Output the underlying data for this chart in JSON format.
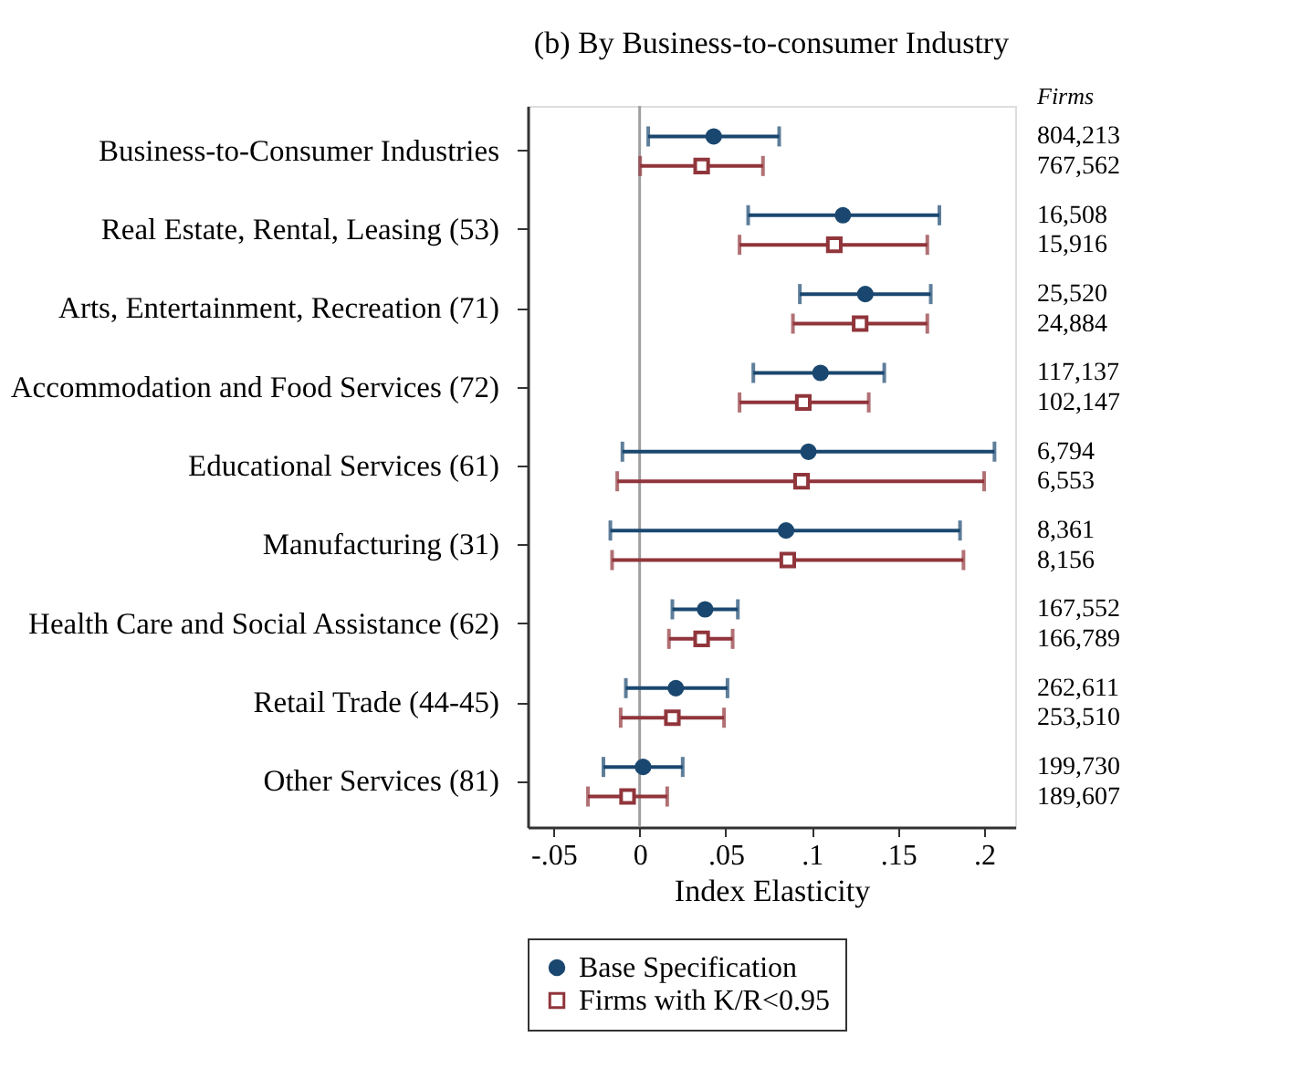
{
  "chart_data": {
    "type": "scatter",
    "orientation": "horizontal",
    "title": "(b) By Business-to-consumer Industry",
    "xlabel": "Index Elasticity",
    "categories": [
      "Business-to-Consumer Industries",
      "Real Estate, Rental, Leasing (53)",
      "Arts, Entertainment, Recreation (71)",
      "Accommodation and Food Services (72)",
      "Educational Services (61)",
      "Manufacturing (31)",
      "Health Care and Social Assistance (62)",
      "Retail Trade (44-45)",
      "Other Services (81)"
    ],
    "series": [
      {
        "name": "Base Specification",
        "color": "#1a476f",
        "marker": "circle",
        "values": [
          0.043,
          0.118,
          0.131,
          0.105,
          0.098,
          0.085,
          0.038,
          0.021,
          0.002
        ],
        "errors": [
          [
            0.005,
            0.081
          ],
          [
            0.063,
            0.174
          ],
          [
            0.093,
            0.169
          ],
          [
            0.066,
            0.142
          ],
          [
            -0.01,
            0.206
          ],
          [
            -0.017,
            0.186
          ],
          [
            0.019,
            0.057
          ],
          [
            -0.008,
            0.051
          ],
          [
            -0.021,
            0.025
          ]
        ]
      },
      {
        "name": "Firms with K/R<0.95",
        "color": "#90353b",
        "marker": "square",
        "values": [
          0.036,
          0.113,
          0.128,
          0.095,
          0.094,
          0.086,
          0.036,
          0.019,
          -0.007
        ],
        "errors": [
          [
            0.0003,
            0.0716
          ],
          [
            0.058,
            0.167
          ],
          [
            0.089,
            0.167
          ],
          [
            0.058,
            0.133
          ],
          [
            -0.013,
            0.2
          ],
          [
            -0.016,
            0.188
          ],
          [
            0.017,
            0.054
          ],
          [
            -0.011,
            0.049
          ],
          [
            -0.03,
            0.016
          ]
        ]
      }
    ],
    "xlim": [
      -0.065,
      0.218
    ],
    "xticks": [
      {
        "value": -0.05,
        "label": "-.05"
      },
      0,
      {
        "value": 0.05,
        "label": ".05"
      },
      {
        "value": 0.1,
        "label": ".1"
      },
      {
        "value": 0.15,
        "label": ".15"
      },
      {
        "value": 0.2,
        "label": ".2"
      }
    ],
    "ref_lines": [
      {
        "axis": "x",
        "value": 0,
        "color": "#a0a0a0"
      }
    ],
    "annotations": [
      "Firms",
      "804,213",
      "767,562",
      "16,508",
      "15,916",
      "25,520",
      "24,884",
      "117,137",
      "102,147",
      "6,794",
      "6,553",
      "8,361",
      "8,156",
      "167,552",
      "166,789",
      "262,611",
      "253,510",
      "199,730",
      "189,607"
    ],
    "legend": "bottom",
    "grid": false
  }
}
